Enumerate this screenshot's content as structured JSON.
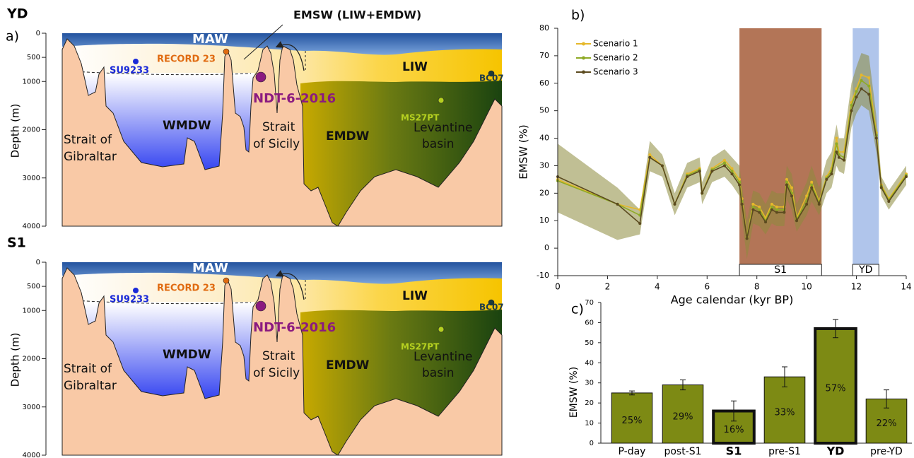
{
  "sections": [
    {
      "title": "YD",
      "panel": "a)",
      "depth_label": "Depth (m)",
      "depth_lim": [
        0,
        4000
      ],
      "depth_ticks": [
        0,
        500,
        1000,
        2000,
        3000,
        4000
      ],
      "labels": {
        "maw": "MAW",
        "emsw": "EMSW (LIW+EMDW)",
        "record23": "RECORD 23",
        "su9233": "SU9233",
        "ndt": "NDT-6-2016",
        "liw": "LIW",
        "bc07": "BC07",
        "ms27pt": "MS27PT",
        "wmdw": "WMDW",
        "emdw": "EMDW",
        "gib1": "Strait of",
        "gib2": "Gibraltar",
        "sic1": "Strait",
        "sic2": "of Sicily",
        "lev1": "Levantine",
        "lev2": "basin"
      }
    },
    {
      "title": "S1",
      "depth_label": "Depth (m)",
      "depth_lim": [
        0,
        4000
      ],
      "depth_ticks": [
        0,
        500,
        1000,
        2000,
        3000,
        4000
      ],
      "labels": {
        "maw": "MAW",
        "record23": "RECORD 23",
        "su9233": "SU9233",
        "ndt": "NDT-6-2016",
        "liw": "LIW",
        "bc07": "BC07",
        "ms27pt": "MS27PT",
        "wmdw": "WMDW",
        "emdw": "EMDW",
        "gib1": "Strait of",
        "gib2": "Gibraltar",
        "sic1": "Strait",
        "sic2": "of Sicily",
        "lev1": "Levantine",
        "lev2": "basin"
      }
    }
  ],
  "chart_data": [
    {
      "type": "line",
      "title": "b)",
      "x_label": "Age calendar (kyr BP)",
      "y_label": "EMSW (%)",
      "xlim": [
        0,
        14
      ],
      "xticks": [
        0,
        2,
        4,
        6,
        8,
        10,
        12,
        14
      ],
      "ylim": [
        -10,
        80
      ],
      "yticks": [
        -10,
        0,
        10,
        20,
        30,
        40,
        50,
        60,
        70,
        80
      ],
      "x": [
        0,
        2.4,
        3.3,
        3.7,
        4.2,
        4.7,
        5.2,
        5.7,
        5.8,
        6.2,
        6.7,
        7.0,
        7.3,
        7.4,
        7.6,
        7.85,
        8.1,
        8.35,
        8.6,
        8.8,
        9.1,
        9.2,
        9.4,
        9.6,
        10.0,
        10.2,
        10.5,
        10.8,
        11.0,
        11.2,
        11.3,
        11.5,
        11.8,
        12.0,
        12.2,
        12.5,
        12.8,
        13.0,
        13.3,
        14.0
      ],
      "envelope": {
        "color": "#8c8a3c",
        "lower": [
          13,
          3,
          5,
          28,
          26,
          12,
          22,
          24,
          16,
          24,
          26,
          23,
          19,
          11,
          -4,
          9,
          8,
          5,
          9,
          8,
          8,
          18,
          14,
          6,
          12,
          17,
          12,
          20,
          22,
          30,
          28,
          27,
          44,
          49,
          52,
          50,
          35,
          19,
          14,
          23
        ],
        "upper": [
          38,
          22,
          14,
          39,
          34,
          20,
          31,
          33,
          24,
          33,
          36,
          33,
          30,
          23,
          10,
          21,
          20,
          16,
          21,
          20,
          20,
          30,
          27,
          16,
          24,
          30,
          22,
          32,
          35,
          45,
          40,
          40,
          60,
          66,
          71,
          70,
          48,
          26,
          21,
          30
        ]
      },
      "series": [
        {
          "name": "Scenario 1",
          "color": "#e6b82a",
          "values": [
            25,
            16,
            14,
            34,
            30,
            16,
            27,
            29,
            20,
            29,
            32,
            29,
            25,
            18,
            4,
            16,
            15,
            11,
            16,
            15,
            15,
            25,
            22,
            11,
            19,
            24,
            17,
            26,
            29,
            40,
            35,
            35,
            53,
            58,
            63,
            62,
            42,
            23,
            18,
            27
          ]
        },
        {
          "name": "Scenario 2",
          "color": "#8faa26",
          "values": [
            24.5,
            16,
            12,
            33,
            30,
            16,
            26.5,
            28.5,
            20,
            28.5,
            31,
            28,
            24,
            17,
            4,
            15,
            14,
            10,
            15,
            14,
            14,
            24,
            20,
            10.5,
            17,
            23,
            16.5,
            25.5,
            28,
            38,
            34,
            33,
            52,
            57,
            61,
            59,
            41,
            22.5,
            17.5,
            26.5
          ]
        },
        {
          "name": "Scenario 3",
          "color": "#5b4a1f",
          "values": [
            26,
            16,
            9,
            33,
            30,
            16,
            26,
            28,
            20,
            28,
            30,
            27,
            23,
            16,
            3.5,
            14,
            13,
            9.5,
            14,
            13,
            13,
            23,
            19,
            10,
            16,
            22,
            16,
            25,
            27,
            35,
            33,
            32,
            50,
            55,
            58,
            56,
            40,
            22,
            17,
            26
          ]
        }
      ],
      "periods": [
        {
          "label": "S1",
          "start": 7.3,
          "end": 10.6,
          "color": "#a0522d"
        },
        {
          "label": "YD",
          "start": 11.85,
          "end": 12.9,
          "color": "#9cb6e6"
        }
      ]
    },
    {
      "type": "bar",
      "title": "c)",
      "y_label": "EMSW (%)",
      "categories": [
        "P-day",
        "post-S1",
        "S1",
        "pre-S1",
        "YD",
        "pre-YD"
      ],
      "values": [
        25,
        29,
        16,
        33,
        57,
        22
      ],
      "value_labels": [
        "25%",
        "29%",
        "16%",
        "33%",
        "57%",
        "22%"
      ],
      "errors": [
        1,
        2.5,
        5,
        5,
        4.5,
        4.5
      ],
      "highlight": [
        false,
        false,
        true,
        false,
        true,
        false
      ],
      "color": "#7d8a14",
      "ylim": [
        0,
        70
      ],
      "yticks": [
        0,
        10,
        20,
        30,
        40,
        50,
        60,
        70
      ]
    }
  ]
}
